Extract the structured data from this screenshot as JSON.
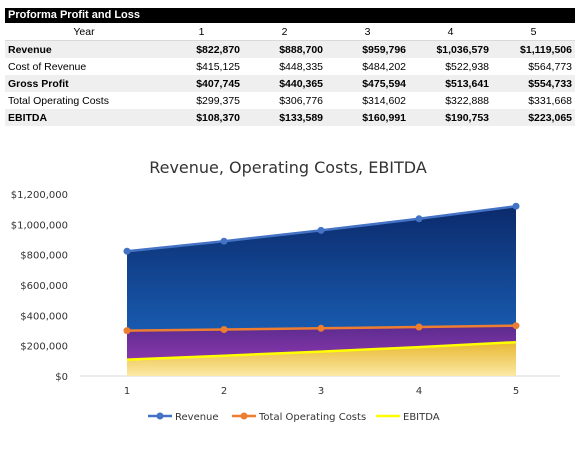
{
  "table": {
    "title": "Proforma Profit and Loss",
    "header_label": "Year",
    "years": [
      "1",
      "2",
      "3",
      "4",
      "5"
    ],
    "rows": [
      {
        "label": "Revenue",
        "bold": true,
        "shaded": true,
        "values": [
          "$822,870",
          "$888,700",
          "$959,796",
          "$1,036,579",
          "$1,119,506"
        ]
      },
      {
        "label": "Cost of Revenue",
        "bold": false,
        "shaded": false,
        "values": [
          "$415,125",
          "$448,335",
          "$484,202",
          "$522,938",
          "$564,773"
        ]
      },
      {
        "label": "Gross Profit",
        "bold": true,
        "shaded": true,
        "values": [
          "$407,745",
          "$440,365",
          "$475,594",
          "$513,641",
          "$554,733"
        ]
      },
      {
        "label": "Total Operating Costs",
        "bold": false,
        "shaded": false,
        "values": [
          "$299,375",
          "$306,776",
          "$314,602",
          "$322,888",
          "$331,668"
        ]
      },
      {
        "label": "EBITDA",
        "bold": true,
        "shaded": true,
        "values": [
          "$108,370",
          "$133,589",
          "$160,991",
          "$190,753",
          "$223,065"
        ]
      }
    ]
  },
  "chart_data": {
    "type": "area",
    "title": "Revenue, Operating Costs, EBITDA",
    "x": [
      1,
      2,
      3,
      4,
      5
    ],
    "ylim": [
      0,
      1200000
    ],
    "yticks": [
      0,
      200000,
      400000,
      600000,
      800000,
      1000000,
      1200000
    ],
    "ytick_labels": [
      "$0",
      "$200,000",
      "$400,000",
      "$600,000",
      "$800,000",
      "$1,000,000",
      "$1,200,000"
    ],
    "xtick_labels": [
      "1",
      "2",
      "3",
      "4",
      "5"
    ],
    "grid": false,
    "legend_position": "bottom",
    "series": [
      {
        "name": "Revenue",
        "values": [
          822870,
          888700,
          959796,
          1036579,
          1119506
        ],
        "line_color": "#4472c4",
        "fill_top": "#0b2a6b",
        "fill_bottom": "#1e6cc8",
        "marker": true
      },
      {
        "name": "Total Operating Costs",
        "values": [
          299375,
          306776,
          314602,
          322888,
          331668
        ],
        "line_color": "#ed7d31",
        "fill_top": "#5b2c8f",
        "fill_bottom": "#a03ab8",
        "marker": true
      },
      {
        "name": "EBITDA",
        "values": [
          108370,
          133589,
          160991,
          190753,
          223065
        ],
        "line_color": "#ffff00",
        "fill_top": "#e8b830",
        "fill_bottom": "#fbe9a6",
        "marker": false
      }
    ]
  }
}
